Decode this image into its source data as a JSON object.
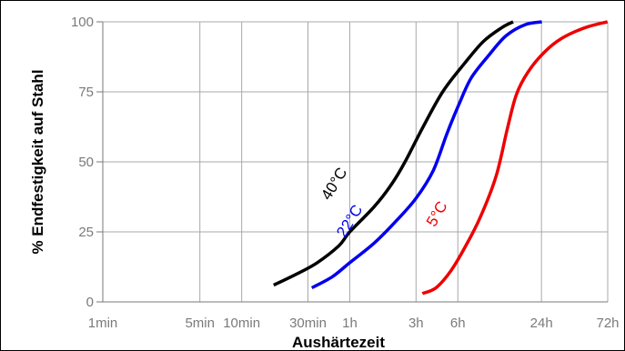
{
  "chart_data": {
    "type": "line",
    "title": "",
    "xlabel": "Aushärtezeit",
    "ylabel": "% Endfestigkeit auf Stahl",
    "x_scale": "log",
    "x_unit": "min",
    "x_ticks": [
      {
        "label": "1min",
        "value": 1
      },
      {
        "label": "5min",
        "value": 5
      },
      {
        "label": "10min",
        "value": 10
      },
      {
        "label": "30min",
        "value": 30
      },
      {
        "label": "1h",
        "value": 60
      },
      {
        "label": "3h",
        "value": 180
      },
      {
        "label": "6h",
        "value": 360
      },
      {
        "label": "24h",
        "value": 1440
      },
      {
        "label": "72h",
        "value": 4320
      }
    ],
    "y_ticks": [
      0,
      25,
      50,
      75,
      100
    ],
    "ylim": [
      0,
      100
    ],
    "grid": true,
    "series": [
      {
        "name": "40°C",
        "color": "#000000",
        "points": [
          [
            17,
            6
          ],
          [
            25,
            10
          ],
          [
            35,
            14
          ],
          [
            50,
            20
          ],
          [
            60,
            25
          ],
          [
            90,
            34
          ],
          [
            120,
            42
          ],
          [
            150,
            50
          ],
          [
            200,
            62
          ],
          [
            280,
            75
          ],
          [
            400,
            85
          ],
          [
            550,
            93
          ],
          [
            750,
            98
          ],
          [
            900,
            100
          ]
        ]
      },
      {
        "name": "22°C",
        "color": "#0000ee",
        "points": [
          [
            32,
            5
          ],
          [
            45,
            9
          ],
          [
            60,
            14
          ],
          [
            90,
            21
          ],
          [
            130,
            29
          ],
          [
            180,
            37
          ],
          [
            240,
            47
          ],
          [
            300,
            60
          ],
          [
            370,
            71
          ],
          [
            450,
            80
          ],
          [
            600,
            88
          ],
          [
            800,
            95
          ],
          [
            1100,
            99
          ],
          [
            1450,
            100
          ]
        ]
      },
      {
        "name": "5°C",
        "color": "#ee0000",
        "points": [
          [
            200,
            3
          ],
          [
            250,
            5
          ],
          [
            320,
            11
          ],
          [
            400,
            19
          ],
          [
            520,
            30
          ],
          [
            680,
            45
          ],
          [
            820,
            62
          ],
          [
            950,
            74
          ],
          [
            1150,
            82
          ],
          [
            1500,
            89
          ],
          [
            2000,
            94
          ],
          [
            3000,
            98
          ],
          [
            4300,
            100
          ]
        ]
      }
    ]
  }
}
